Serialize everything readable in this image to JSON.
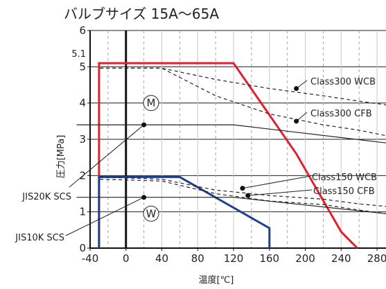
{
  "chart_data": {
    "type": "line",
    "title": "バルブサイズ 15A〜65A",
    "xlabel": "温度[℃]",
    "ylabel": "圧力[MPa]",
    "xlim": [
      -40,
      290
    ],
    "ylim": [
      0,
      6
    ],
    "x_ticks": [
      -40,
      0,
      40,
      80,
      120,
      160,
      200,
      240,
      280
    ],
    "y_ticks": [
      0,
      1,
      2,
      3,
      4,
      5,
      6
    ],
    "x_tick_labels": [
      "-40",
      "0",
      "40",
      "80",
      "120",
      "160",
      "200",
      "240",
      "280"
    ],
    "y_tick_labels": [
      "0",
      "1",
      "2",
      "3",
      "4",
      "5",
      "6"
    ],
    "x_minor_dashed_grid": [
      -20,
      20,
      60,
      100,
      140,
      180,
      220,
      260
    ],
    "y_max_marker_label": "5.1",
    "y_max_marker_value": 5.1,
    "zero_line_x": 0,
    "grid": true,
    "series": [
      {
        "name": "M",
        "color": "#e0202a",
        "style": "solid",
        "x": [
          -30,
          -30,
          120,
          190,
          240,
          258
        ],
        "y": [
          0,
          5.1,
          5.1,
          2.6,
          0.45,
          0
        ]
      },
      {
        "name": "W",
        "color": "#1f3e8e",
        "style": "solid",
        "x": [
          -30,
          -30,
          60,
          160,
          160
        ],
        "y": [
          0,
          1.96,
          1.96,
          0.55,
          0
        ]
      },
      {
        "name": "Class300 WCB",
        "color": "#222222",
        "style": "dashed",
        "x": [
          -29,
          40,
          100,
          160,
          220,
          260,
          290
        ],
        "y": [
          4.96,
          4.96,
          4.65,
          4.4,
          4.2,
          4.05,
          3.95
        ]
      },
      {
        "name": "Class300 CFB",
        "color": "#222222",
        "style": "dashed",
        "x": [
          -29,
          40,
          100,
          160,
          220,
          260,
          290
        ],
        "y": [
          4.96,
          4.96,
          4.2,
          3.7,
          3.4,
          3.25,
          3.1
        ]
      },
      {
        "name": "Class150 WCB",
        "color": "#222222",
        "style": "dashed",
        "x": [
          -29,
          40,
          100,
          160,
          220,
          260,
          290
        ],
        "y": [
          1.96,
          1.9,
          1.6,
          1.45,
          1.35,
          1.22,
          1.15
        ]
      },
      {
        "name": "Class150 CFB",
        "color": "#222222",
        "style": "dashed",
        "x": [
          -29,
          40,
          100,
          160,
          220,
          260,
          290
        ],
        "y": [
          1.9,
          1.85,
          1.5,
          1.3,
          1.2,
          1.05,
          0.95
        ]
      },
      {
        "name": "JIS20K SCS",
        "color": "#222222",
        "style": "solid",
        "x": [
          -55,
          120,
          290
        ],
        "y": [
          3.4,
          3.4,
          2.9
        ]
      },
      {
        "name": "JIS10K SCS",
        "color": "#222222",
        "style": "solid",
        "x": [
          -55,
          120,
          290
        ],
        "y": [
          1.4,
          1.4,
          0.95
        ]
      }
    ],
    "annotations": [
      {
        "text": "Class300 WCB",
        "point": [
          190,
          4.4
        ]
      },
      {
        "text": "Class300 CFB",
        "point": [
          190,
          3.5
        ]
      },
      {
        "text": "Class150 WCB",
        "point": [
          130,
          1.65
        ]
      },
      {
        "text": "Class150 CFB",
        "point": [
          136,
          1.45
        ]
      },
      {
        "text": "JIS20K SCS",
        "point": [
          20,
          3.4
        ]
      },
      {
        "text": "JIS10K SCS",
        "point": [
          20,
          1.4
        ]
      }
    ],
    "region_markers": [
      {
        "text": "M",
        "x": 28,
        "y": 4.0
      },
      {
        "text": "W",
        "x": 28,
        "y": 0.95
      }
    ]
  }
}
